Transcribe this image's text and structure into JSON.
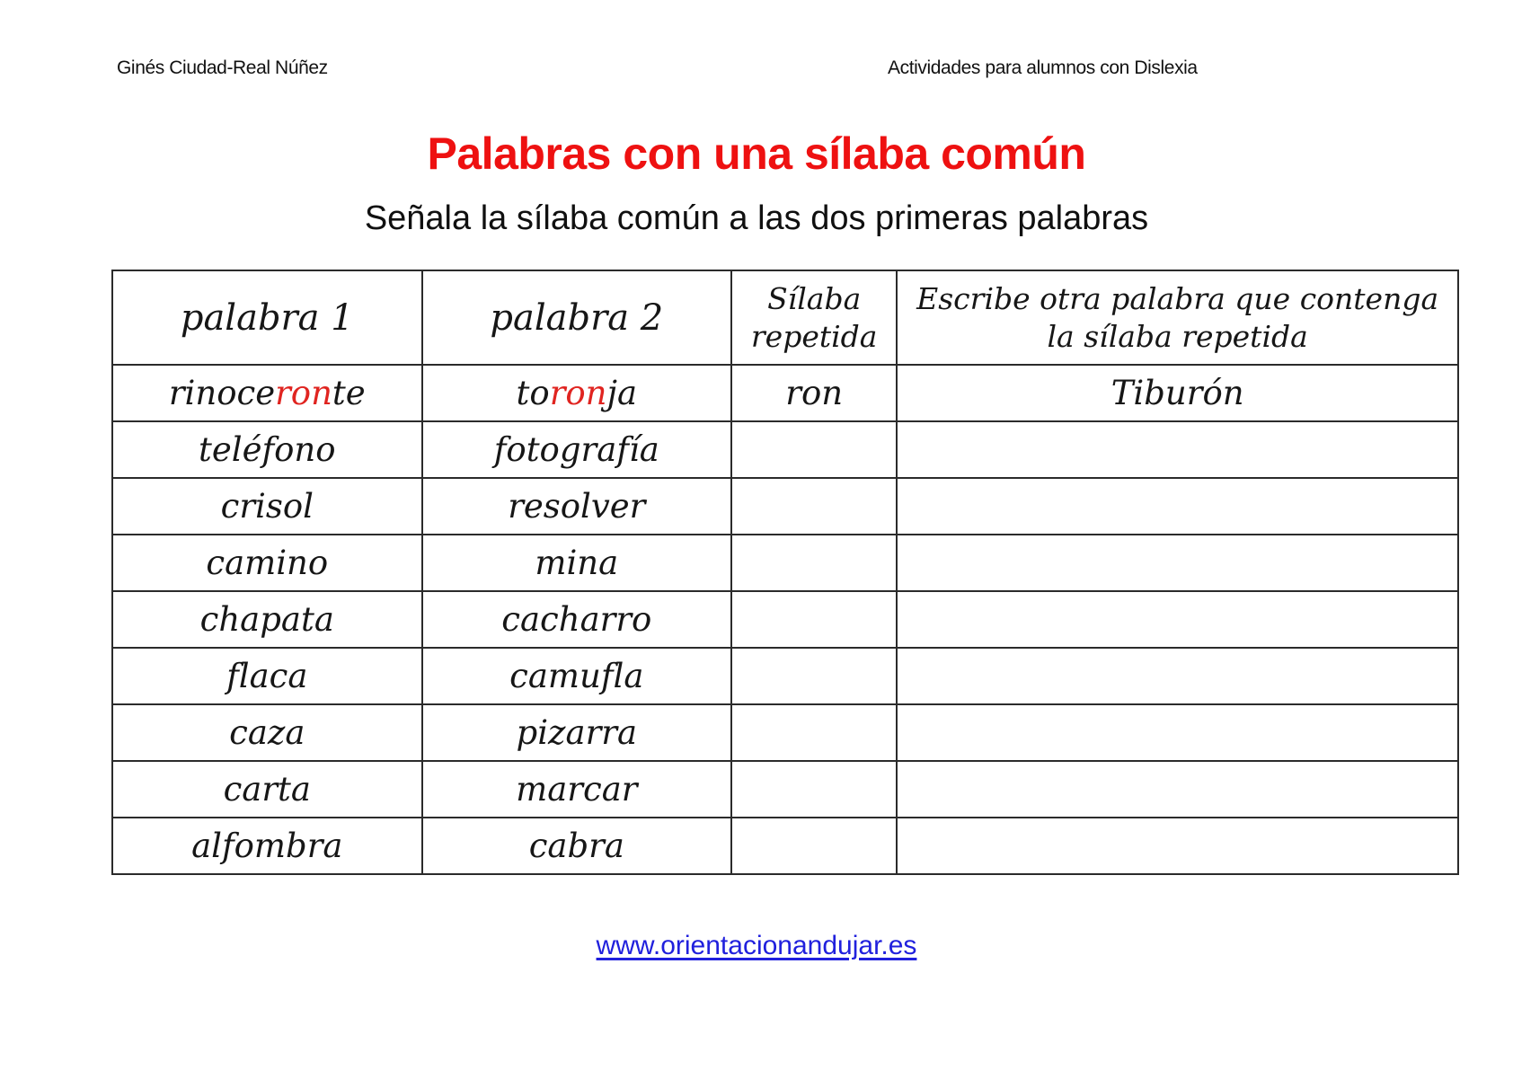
{
  "page": {
    "header_left": "Ginés Ciudad-Real Núñez",
    "header_right": "Actividades para alumnos con Dislexia",
    "title": "Palabras con una sílaba común",
    "subtitle": "Señala la sílaba común a las dos primeras palabras",
    "footer_link": "www.orientacionandujar.es"
  },
  "colors": {
    "title_red": "#ee1111",
    "syllable_red": "#e02420",
    "link_blue": "#2020dd",
    "table_border": "#2b2b2b",
    "text": "#1a1a1a",
    "page_bg": "#ffffff"
  },
  "table": {
    "headers": [
      {
        "key": "palabra-1",
        "lines": [
          "palabra 1"
        ]
      },
      {
        "key": "palabra-2",
        "lines": [
          "palabra 2"
        ]
      },
      {
        "key": "silaba-repetida",
        "lines": [
          "Sílaba",
          "repetida"
        ]
      },
      {
        "key": "otra-palabra",
        "lines": [
          "Escribe otra palabra que contenga",
          "la sílaba repetida"
        ]
      }
    ],
    "rows": [
      {
        "p1": [
          {
            "t": "rinoce"
          },
          {
            "t": "ron",
            "red": true
          },
          {
            "t": "te"
          }
        ],
        "p2": [
          {
            "t": "to"
          },
          {
            "t": "ron",
            "red": true
          },
          {
            "t": "ja"
          }
        ],
        "silaba": "ron",
        "otra": "Tiburón"
      },
      {
        "p1": [
          {
            "t": "teléfono"
          }
        ],
        "p2": [
          {
            "t": "fotografía"
          }
        ],
        "silaba": "",
        "otra": ""
      },
      {
        "p1": [
          {
            "t": "crisol"
          }
        ],
        "p2": [
          {
            "t": "resolver"
          }
        ],
        "silaba": "",
        "otra": ""
      },
      {
        "p1": [
          {
            "t": "camino"
          }
        ],
        "p2": [
          {
            "t": "mina"
          }
        ],
        "silaba": "",
        "otra": ""
      },
      {
        "p1": [
          {
            "t": "chapata"
          }
        ],
        "p2": [
          {
            "t": "cacharro"
          }
        ],
        "silaba": "",
        "otra": ""
      },
      {
        "p1": [
          {
            "t": "flaca"
          }
        ],
        "p2": [
          {
            "t": "camufla"
          }
        ],
        "silaba": "",
        "otra": ""
      },
      {
        "p1": [
          {
            "t": "caza"
          }
        ],
        "p2": [
          {
            "t": "pizarra"
          }
        ],
        "silaba": "",
        "otra": ""
      },
      {
        "p1": [
          {
            "t": "carta"
          }
        ],
        "p2": [
          {
            "t": "marcar"
          }
        ],
        "silaba": "",
        "otra": ""
      },
      {
        "p1": [
          {
            "t": "alfombra"
          }
        ],
        "p2": [
          {
            "t": "cabra"
          }
        ],
        "silaba": "",
        "otra": ""
      }
    ]
  }
}
